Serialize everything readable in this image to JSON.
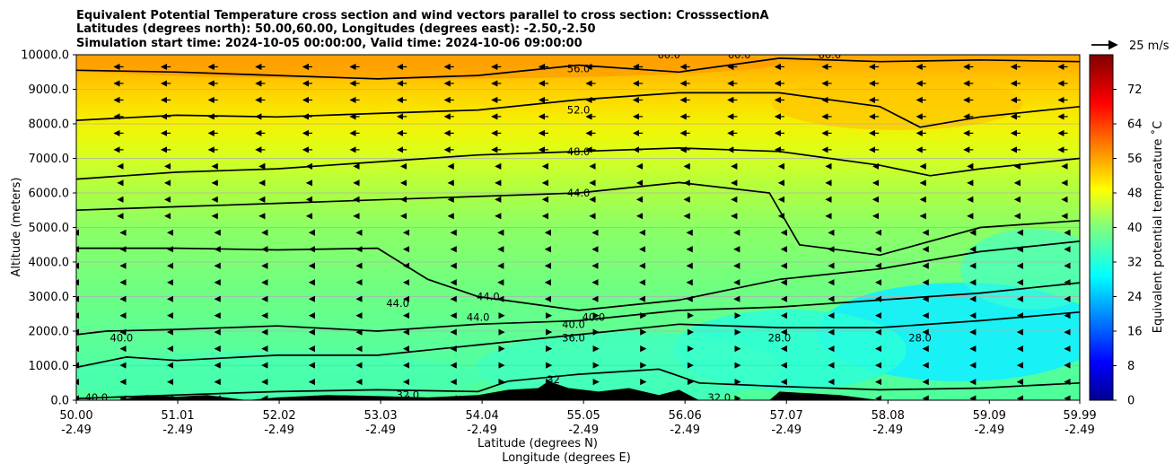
{
  "chart_data": {
    "type": "contour",
    "title_lines": [
      "Equivalent Potential Temperature cross section and wind vectors parallel to cross section: CrosssectionA",
      "Latitudes (degrees north): 50.00,60.00, Longitudes (degrees east): -2.50,-2.50",
      "Simulation start time: 2024-10-05 00:00:00, Valid time: 2024-10-06 09:00:00"
    ],
    "ylabel": "Altitude (meters)",
    "xlabel_line1": "Latitude (degrees N)",
    "xlabel_line2": "Longitude (degrees E)",
    "ylim": [
      0,
      10000
    ],
    "y_ticks": [
      {
        "value": 0,
        "label": "0.0"
      },
      {
        "value": 1000,
        "label": "1000.0"
      },
      {
        "value": 2000,
        "label": "2000.0"
      },
      {
        "value": 3000,
        "label": "3000.0"
      },
      {
        "value": 4000,
        "label": "4000.0"
      },
      {
        "value": 5000,
        "label": "5000.0"
      },
      {
        "value": 6000,
        "label": "6000.0"
      },
      {
        "value": 7000,
        "label": "7000.0"
      },
      {
        "value": 8000,
        "label": "8000.0"
      },
      {
        "value": 9000,
        "label": "9000.0"
      },
      {
        "value": 10000,
        "label": "10000.0"
      }
    ],
    "xlim": [
      50.0,
      59.99
    ],
    "x_ticks": [
      {
        "lat": 50.0,
        "label": "50.00",
        "lon_label": "-2.49"
      },
      {
        "lat": 51.01,
        "label": "51.01",
        "lon_label": "-2.49"
      },
      {
        "lat": 52.02,
        "label": "52.02",
        "lon_label": "-2.49"
      },
      {
        "lat": 53.03,
        "label": "53.03",
        "lon_label": "-2.49"
      },
      {
        "lat": 54.04,
        "label": "54.04",
        "lon_label": "-2.49"
      },
      {
        "lat": 55.05,
        "label": "55.05",
        "lon_label": "-2.49"
      },
      {
        "lat": 56.06,
        "label": "56.06",
        "lon_label": "-2.49"
      },
      {
        "lat": 57.07,
        "label": "57.07",
        "lon_label": "-2.49"
      },
      {
        "lat": 58.08,
        "label": "58.08",
        "lon_label": "-2.49"
      },
      {
        "lat": 59.09,
        "label": "59.09",
        "lon_label": "-2.49"
      },
      {
        "lat": 59.99,
        "label": "59.99",
        "lon_label": "-2.49"
      }
    ],
    "grid_horizontal": true,
    "colorbar": {
      "label": "Equivalent potential temperature ˚C",
      "range": [
        0,
        80
      ],
      "ticks": [
        0,
        8,
        16,
        24,
        32,
        40,
        48,
        56,
        64,
        72
      ],
      "colormap": "jet"
    },
    "quiver_key": {
      "label": "25 m/s",
      "magnitude": 25
    },
    "contours": [
      {
        "level": 32,
        "points": [
          [
            50.0,
            50
          ],
          [
            50.5,
            100
          ],
          [
            51.0,
            150
          ],
          [
            52.0,
            250
          ],
          [
            53.0,
            300
          ],
          [
            54.0,
            250
          ],
          [
            54.3,
            550
          ],
          [
            55.0,
            750
          ],
          [
            55.8,
            900
          ],
          [
            56.2,
            500
          ],
          [
            57.0,
            400
          ],
          [
            58.0,
            300
          ],
          [
            59.0,
            350
          ],
          [
            59.99,
            500
          ]
        ]
      },
      {
        "level": 36,
        "points": [
          [
            50.0,
            950
          ],
          [
            50.5,
            1250
          ],
          [
            51.0,
            1150
          ],
          [
            52.0,
            1300
          ],
          [
            53.0,
            1300
          ],
          [
            54.0,
            1600
          ],
          [
            55.0,
            1900
          ],
          [
            56.0,
            2200
          ],
          [
            57.0,
            2100
          ],
          [
            58.0,
            2100
          ],
          [
            59.0,
            2300
          ],
          [
            59.99,
            2550
          ]
        ]
      },
      {
        "level": 40,
        "points": [
          [
            50.0,
            1900
          ],
          [
            50.3,
            2000
          ],
          [
            51.0,
            2050
          ],
          [
            52.0,
            2150
          ],
          [
            53.0,
            2000
          ],
          [
            54.0,
            2200
          ],
          [
            55.0,
            2300
          ],
          [
            56.0,
            2600
          ],
          [
            57.0,
            2700
          ],
          [
            58.0,
            2900
          ],
          [
            59.0,
            3100
          ],
          [
            59.99,
            3400
          ]
        ]
      },
      {
        "level": 44,
        "points": [
          [
            50.0,
            4400
          ],
          [
            51.0,
            4400
          ],
          [
            52.0,
            4350
          ],
          [
            53.0,
            4400
          ],
          [
            53.5,
            3500
          ],
          [
            54.0,
            3000
          ],
          [
            55.0,
            2600
          ],
          [
            56.0,
            2900
          ],
          [
            57.0,
            3500
          ],
          [
            58.0,
            3800
          ],
          [
            59.0,
            4300
          ],
          [
            59.99,
            4600
          ]
        ]
      },
      {
        "level": 44,
        "points": [
          [
            50.0,
            5500
          ],
          [
            51.0,
            5600
          ],
          [
            52.0,
            5700
          ],
          [
            53.0,
            5800
          ],
          [
            54.0,
            5900
          ],
          [
            55.0,
            6000
          ],
          [
            56.0,
            6300
          ],
          [
            56.9,
            6000
          ],
          [
            57.2,
            4500
          ],
          [
            58.0,
            4200
          ],
          [
            59.0,
            5000
          ],
          [
            59.99,
            5200
          ]
        ]
      },
      {
        "level": 48,
        "points": [
          [
            50.0,
            6400
          ],
          [
            51.0,
            6600
          ],
          [
            52.0,
            6700
          ],
          [
            53.0,
            6900
          ],
          [
            54.0,
            7100
          ],
          [
            55.0,
            7200
          ],
          [
            56.0,
            7300
          ],
          [
            57.0,
            7200
          ],
          [
            58.0,
            6800
          ],
          [
            58.5,
            6500
          ],
          [
            59.0,
            6700
          ],
          [
            59.99,
            7000
          ]
        ]
      },
      {
        "level": 52,
        "points": [
          [
            50.0,
            8100
          ],
          [
            51.0,
            8250
          ],
          [
            52.0,
            8200
          ],
          [
            53.0,
            8300
          ],
          [
            54.0,
            8400
          ],
          [
            55.0,
            8700
          ],
          [
            56.0,
            8900
          ],
          [
            57.0,
            8900
          ],
          [
            58.0,
            8500
          ],
          [
            58.4,
            7900
          ],
          [
            59.0,
            8200
          ],
          [
            59.99,
            8500
          ]
        ]
      },
      {
        "level": 56,
        "points": [
          [
            50.0,
            9550
          ],
          [
            51.0,
            9500
          ],
          [
            52.0,
            9400
          ],
          [
            53.0,
            9300
          ],
          [
            54.0,
            9400
          ],
          [
            55.0,
            9700
          ],
          [
            56.0,
            9500
          ],
          [
            57.0,
            9900
          ],
          [
            58.0,
            9800
          ],
          [
            59.0,
            9850
          ],
          [
            59.99,
            9800
          ]
        ]
      }
    ],
    "contour_labels": [
      {
        "text": "40.0",
        "lat": 50.2,
        "alt": 80
      },
      {
        "text": "40.0",
        "lat": 50.45,
        "alt": 1800
      },
      {
        "text": "32.0",
        "lat": 53.3,
        "alt": 150
      },
      {
        "text": "44.0",
        "lat": 53.2,
        "alt": 2800
      },
      {
        "text": "44.0",
        "lat": 54.1,
        "alt": 3000
      },
      {
        "text": "44.0",
        "lat": 54.0,
        "alt": 2400
      },
      {
        "text": "40.0",
        "lat": 54.95,
        "alt": 2200
      },
      {
        "text": "40.0",
        "lat": 55.15,
        "alt": 2400
      },
      {
        "text": "36.0",
        "lat": 54.95,
        "alt": 1800
      },
      {
        "text": "32",
        "lat": 54.75,
        "alt": 600
      },
      {
        "text": "32.0",
        "lat": 56.4,
        "alt": 80
      },
      {
        "text": "28.0",
        "lat": 57.0,
        "alt": 1800
      },
      {
        "text": "28.0",
        "lat": 58.4,
        "alt": 1800
      },
      {
        "text": "44.0",
        "lat": 55.0,
        "alt": 6000
      },
      {
        "text": "48.0",
        "lat": 55.0,
        "alt": 7200
      },
      {
        "text": "52.0",
        "lat": 55.0,
        "alt": 8400
      },
      {
        "text": "56.0",
        "lat": 55.0,
        "alt": 9600
      },
      {
        "text": "60.0",
        "lat": 55.9,
        "alt": 10000
      },
      {
        "text": "60.0",
        "lat": 56.6,
        "alt": 10000
      },
      {
        "text": "60.0",
        "lat": 57.5,
        "alt": 10000
      }
    ],
    "terrain": [
      [
        50.0,
        0
      ],
      [
        50.4,
        0
      ],
      [
        50.7,
        150
      ],
      [
        51.0,
        100
      ],
      [
        51.3,
        150
      ],
      [
        51.7,
        0
      ],
      [
        52.0,
        80
      ],
      [
        52.5,
        150
      ],
      [
        53.0,
        120
      ],
      [
        53.5,
        80
      ],
      [
        54.0,
        150
      ],
      [
        54.3,
        300
      ],
      [
        54.6,
        350
      ],
      [
        54.7,
        550
      ],
      [
        54.9,
        350
      ],
      [
        55.2,
        250
      ],
      [
        55.5,
        350
      ],
      [
        55.8,
        150
      ],
      [
        56.0,
        300
      ],
      [
        56.2,
        0
      ],
      [
        56.9,
        0
      ],
      [
        57.0,
        250
      ],
      [
        57.3,
        200
      ],
      [
        57.6,
        150
      ],
      [
        58.0,
        0
      ],
      [
        59.99,
        0
      ]
    ]
  }
}
